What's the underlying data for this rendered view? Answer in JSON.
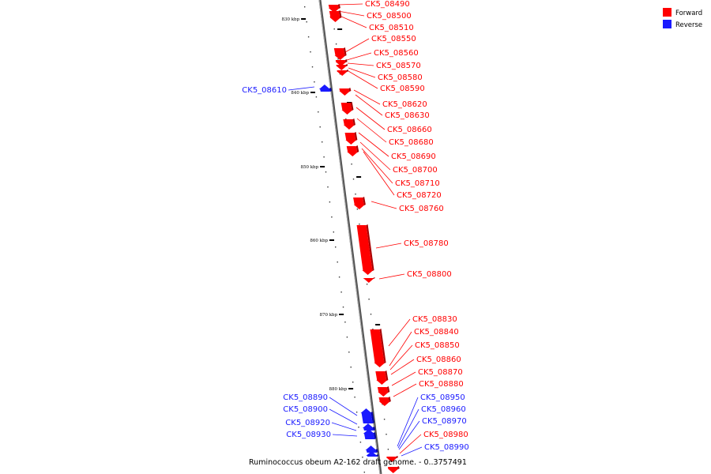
{
  "caption": "Ruminococcus obeum A2-162 draft genome. - 0..3757491",
  "legend": [
    {
      "label": "Forward",
      "color": "#ff0000"
    },
    {
      "label": "Reverse",
      "color": "#1a1aff"
    }
  ],
  "ticks": [
    "830 kbp",
    "840 kbp",
    "850 kbp",
    "860 kbp",
    "870 kbp",
    "880 kbp"
  ],
  "genes": [
    {
      "id": "CK5_08490",
      "strand": "forward"
    },
    {
      "id": "CK5_08500",
      "strand": "forward"
    },
    {
      "id": "CK5_08510",
      "strand": "forward"
    },
    {
      "id": "CK5_08550",
      "strand": "forward"
    },
    {
      "id": "CK5_08560",
      "strand": "forward"
    },
    {
      "id": "CK5_08570",
      "strand": "forward"
    },
    {
      "id": "CK5_08580",
      "strand": "forward"
    },
    {
      "id": "CK5_08590",
      "strand": "forward"
    },
    {
      "id": "CK5_08610",
      "strand": "reverse"
    },
    {
      "id": "CK5_08620",
      "strand": "forward"
    },
    {
      "id": "CK5_08630",
      "strand": "forward"
    },
    {
      "id": "CK5_08660",
      "strand": "forward"
    },
    {
      "id": "CK5_08680",
      "strand": "forward"
    },
    {
      "id": "CK5_08690",
      "strand": "forward"
    },
    {
      "id": "CK5_08700",
      "strand": "forward"
    },
    {
      "id": "CK5_08710",
      "strand": "forward"
    },
    {
      "id": "CK5_08720",
      "strand": "forward"
    },
    {
      "id": "CK5_08760",
      "strand": "forward"
    },
    {
      "id": "CK5_08780",
      "strand": "forward"
    },
    {
      "id": "CK5_08800",
      "strand": "forward"
    },
    {
      "id": "CK5_08830",
      "strand": "forward"
    },
    {
      "id": "CK5_08840",
      "strand": "forward"
    },
    {
      "id": "CK5_08850",
      "strand": "forward"
    },
    {
      "id": "CK5_08860",
      "strand": "forward"
    },
    {
      "id": "CK5_08870",
      "strand": "forward"
    },
    {
      "id": "CK5_08880",
      "strand": "forward"
    },
    {
      "id": "CK5_08890",
      "strand": "reverse"
    },
    {
      "id": "CK5_08900",
      "strand": "reverse"
    },
    {
      "id": "CK5_08920",
      "strand": "reverse"
    },
    {
      "id": "CK5_08930",
      "strand": "reverse"
    },
    {
      "id": "CK5_08950",
      "strand": "reverse"
    },
    {
      "id": "CK5_08960",
      "strand": "reverse"
    },
    {
      "id": "CK5_08970",
      "strand": "reverse"
    },
    {
      "id": "CK5_08980",
      "strand": "forward"
    },
    {
      "id": "CK5_08990",
      "strand": "reverse"
    }
  ]
}
